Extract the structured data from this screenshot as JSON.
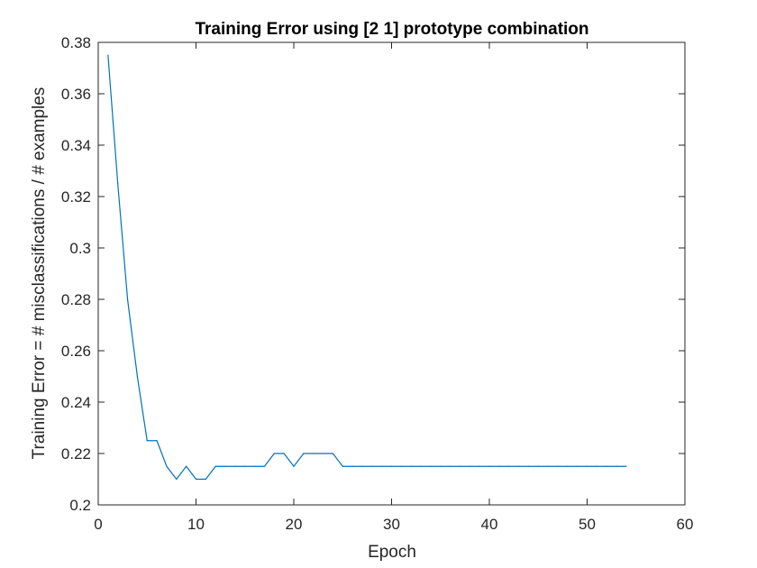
{
  "chart_data": {
    "type": "line",
    "title": "Training Error using [2 1] prototype combination",
    "xlabel": "Epoch",
    "ylabel": "Training Error = # misclassifications / # examples",
    "xlim": [
      0,
      60
    ],
    "ylim": [
      0.2,
      0.38
    ],
    "xticks": [
      0,
      10,
      20,
      30,
      40,
      50,
      60
    ],
    "xtick_labels": [
      "0",
      "10",
      "20",
      "30",
      "40",
      "50",
      "60"
    ],
    "yticks": [
      0.2,
      0.22,
      0.24,
      0.26,
      0.28,
      0.3,
      0.32,
      0.34,
      0.36,
      0.38
    ],
    "ytick_labels": [
      "0.2",
      "0.22",
      "0.24",
      "0.26",
      "0.28",
      "0.3",
      "0.32",
      "0.34",
      "0.36",
      "0.38"
    ],
    "grid": false,
    "line_color": "#0072BD",
    "series": [
      {
        "x": [
          1,
          2,
          3,
          4,
          5,
          6,
          7,
          8,
          9,
          10,
          11,
          12,
          13,
          14,
          15,
          16,
          17,
          18,
          19,
          20,
          21,
          22,
          23,
          24,
          25,
          26,
          27,
          28,
          29,
          30,
          31,
          32,
          33,
          34,
          35,
          36,
          37,
          38,
          39,
          40,
          41,
          42,
          43,
          44,
          45,
          46,
          47,
          48,
          49,
          50,
          51,
          52,
          53,
          54
        ],
        "values": [
          0.375,
          0.325,
          0.28,
          0.25,
          0.225,
          0.225,
          0.215,
          0.21,
          0.215,
          0.21,
          0.21,
          0.215,
          0.215,
          0.215,
          0.215,
          0.215,
          0.215,
          0.22,
          0.22,
          0.215,
          0.22,
          0.22,
          0.22,
          0.22,
          0.215,
          0.215,
          0.215,
          0.215,
          0.215,
          0.215,
          0.215,
          0.215,
          0.215,
          0.215,
          0.215,
          0.215,
          0.215,
          0.215,
          0.215,
          0.215,
          0.215,
          0.215,
          0.215,
          0.215,
          0.215,
          0.215,
          0.215,
          0.215,
          0.215,
          0.215,
          0.215,
          0.215,
          0.215,
          0.215
        ]
      }
    ]
  }
}
